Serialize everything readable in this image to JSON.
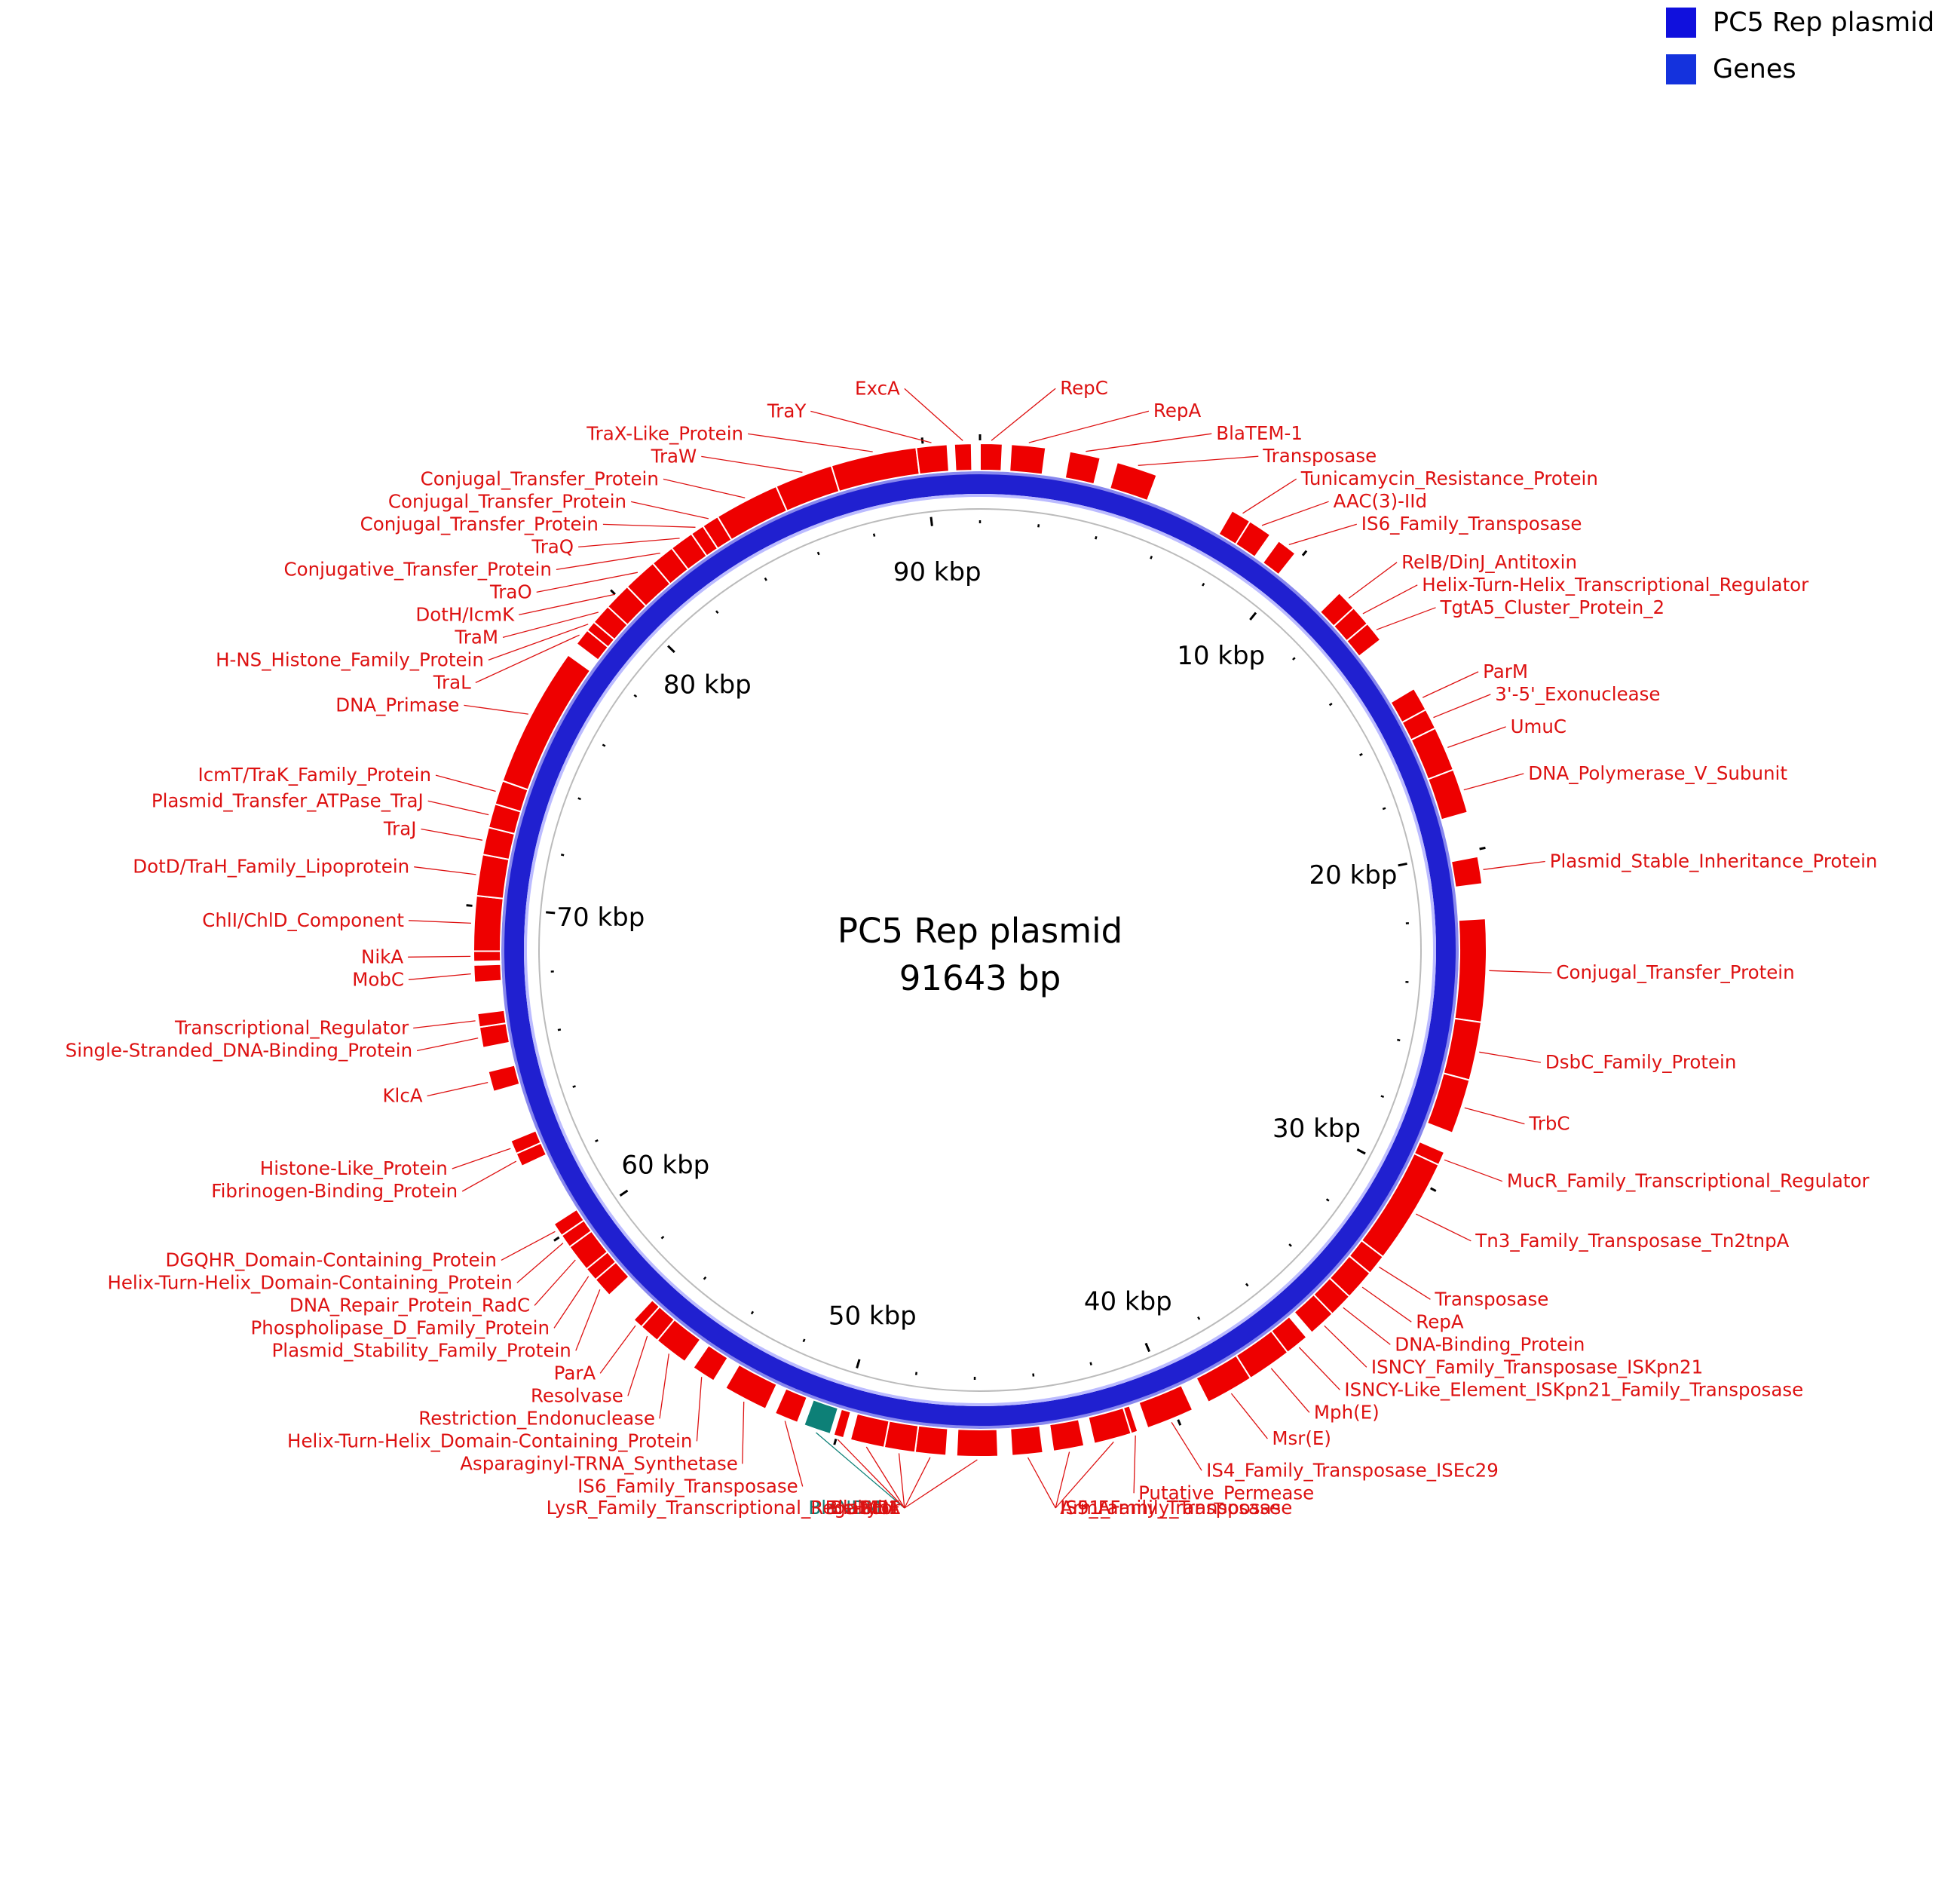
{
  "legend": [
    {
      "label": "PC5 Rep plasmid",
      "color": "#1010dd"
    },
    {
      "label": "Genes",
      "color": "#1432dd"
    }
  ],
  "plasmid": {
    "name": "PC5 Rep plasmid",
    "length_label": "91643 bp",
    "length_bp": 91643
  },
  "colors": {
    "backbone": "#2020d0",
    "gene": "#ee0000",
    "gene_text": "#dd1111",
    "highlight": "#0d8077",
    "highlight_text": "#0d8077"
  },
  "ticks": [
    {
      "bp": 10000,
      "label": "10 kbp"
    },
    {
      "bp": 20000,
      "label": "20 kbp"
    },
    {
      "bp": 30000,
      "label": "30 kbp"
    },
    {
      "bp": 40000,
      "label": "40 kbp"
    },
    {
      "bp": 50000,
      "label": "50 kbp"
    },
    {
      "bp": 60000,
      "label": "60 kbp"
    },
    {
      "bp": 70000,
      "label": "70 kbp"
    },
    {
      "bp": 80000,
      "label": "80 kbp"
    },
    {
      "bp": 90000,
      "label": "90 kbp"
    }
  ],
  "features": [
    {
      "name": "RepC",
      "start": 0,
      "end": 650
    },
    {
      "name": "RepA",
      "start": 900,
      "end": 1900
    },
    {
      "name": "BlaTEM-1",
      "start": 2600,
      "end": 3500
    },
    {
      "name": "Transposase",
      "start": 4000,
      "end": 5200
    },
    {
      "name": "Tunicamycin_Resistance_Protein",
      "start": 7600,
      "end": 8200
    },
    {
      "name": "AAC(3)-IId",
      "start": 8200,
      "end": 8900
    },
    {
      "name": "IS6_Family_Transposase",
      "start": 9200,
      "end": 9800
    },
    {
      "name": "RelB/DinJ_Antitoxin",
      "start": 11500,
      "end": 12100
    },
    {
      "name": "Helix-Turn-Helix_Transcriptional_Regulator",
      "start": 12100,
      "end": 12700
    },
    {
      "name": "TgtA5_Cluster_Protein_2",
      "start": 12700,
      "end": 13300
    },
    {
      "name": "ParM",
      "start": 15000,
      "end": 15700
    },
    {
      "name": "3'-5'_Exonuclease",
      "start": 15700,
      "end": 16300
    },
    {
      "name": "UmuC",
      "start": 16300,
      "end": 17600
    },
    {
      "name": "DNA_Polymerase_V_Subunit",
      "start": 17600,
      "end": 18900
    },
    {
      "name": "Plasmid_Stable_Inheritance_Protein",
      "start": 20200,
      "end": 21000
    },
    {
      "name": "Conjugal_Transfer_Protein",
      "start": 22000,
      "end": 25000
    },
    {
      "name": "DsbC_Family_Protein",
      "start": 25000,
      "end": 26700
    },
    {
      "name": "TrbC",
      "start": 26700,
      "end": 28300
    },
    {
      "name": "MucR_Family_Transcriptional_Regulator",
      "start": 28900,
      "end": 29300
    },
    {
      "name": "Tn3_Family_Transposase_Tn2tnpA",
      "start": 29300,
      "end": 32400
    },
    {
      "name": "Transposase",
      "start": 32400,
      "end": 33000
    },
    {
      "name": "RepA",
      "start": 33000,
      "end": 33900
    },
    {
      "name": "DNA-Binding_Protein",
      "start": 33900,
      "end": 34600
    },
    {
      "name": "ISNCY_Family_Transposase_ISKpn21",
      "start": 34600,
      "end": 35400
    },
    {
      "name": "ISNCY-Like_Element_ISKpn21_Family_Transposase",
      "start": 35600,
      "end": 36300
    },
    {
      "name": "Mph(E)",
      "start": 36300,
      "end": 37600
    },
    {
      "name": "Msr(E)",
      "start": 37600,
      "end": 39000
    },
    {
      "name": "IS4_Family_Transposase_ISEc29",
      "start": 39500,
      "end": 40900
    },
    {
      "name": "Putative_Permease",
      "start": 41200,
      "end": 41400
    },
    {
      "name": "ArmA",
      "start": 41400,
      "end": 42500
    },
    {
      "name": "IS5_Family_Transposase",
      "start": 42800,
      "end": 43700
    },
    {
      "name": "IS91_Family_Transposase",
      "start": 44000,
      "end": 44900
    },
    {
      "name": "Sul1",
      "start": 45300,
      "end": 46500
    },
    {
      "name": "HybF",
      "start": 46800,
      "end": 47700
    },
    {
      "name": "LysR_Family_Transcriptional_Regulator",
      "start": 47700,
      "end": 48600
    },
    {
      "name": "BlaDHA",
      "start": 48600,
      "end": 49600
    },
    {
      "name": "Ble-MBL",
      "start": 49800,
      "end": 50100
    },
    {
      "name": "BlaNDM-1",
      "start": 50200,
      "end": 51000,
      "highlight": true
    },
    {
      "name": "IS6_Family_Transposase",
      "start": 51200,
      "end": 51900
    },
    {
      "name": "Asparaginyl-TRNA_Synthetase",
      "start": 52200,
      "end": 53500
    },
    {
      "name": "Helix-Turn-Helix_Domain-Containing_Protein",
      "start": 53900,
      "end": 54600
    },
    {
      "name": "Restriction_Endonuclease",
      "start": 54900,
      "end": 55900
    },
    {
      "name": "Resolvase",
      "start": 55900,
      "end": 56500
    },
    {
      "name": "ParA",
      "start": 56500,
      "end": 56800
    },
    {
      "name": "Plasmid_Stability_Family_Protein",
      "start": 57800,
      "end": 58400
    },
    {
      "name": "Phospholipase_D_Family_Protein",
      "start": 58400,
      "end": 58800
    },
    {
      "name": "DNA_Repair_Protein_RadC",
      "start": 58800,
      "end": 59600
    },
    {
      "name": "Helix-Turn-Helix_Domain-Containing_Protein",
      "start": 59600,
      "end": 60000
    },
    {
      "name": "DGQHR_Domain-Containing_Protein",
      "start": 60000,
      "end": 60400
    },
    {
      "name": "Fibrinogen-Binding_Protein",
      "start": 62300,
      "end": 62700
    },
    {
      "name": "Histone-Like_Protein",
      "start": 62700,
      "end": 63100
    },
    {
      "name": "KlcA",
      "start": 64600,
      "end": 65200
    },
    {
      "name": "Single-Stranded_DNA-Binding_Protein",
      "start": 65900,
      "end": 66500
    },
    {
      "name": "Transcriptional_Regulator",
      "start": 66500,
      "end": 66900
    },
    {
      "name": "MobC",
      "start": 67800,
      "end": 68300
    },
    {
      "name": "NikA",
      "start": 68400,
      "end": 68700
    },
    {
      "name": "ChlI/ChlD_Component",
      "start": 68700,
      "end": 70300
    },
    {
      "name": "DotD/TraH_Family_Lipoprotein",
      "start": 70300,
      "end": 71500
    },
    {
      "name": "TraJ",
      "start": 71500,
      "end": 72300
    },
    {
      "name": "Plasmid_Transfer_ATPase_TraJ",
      "start": 72300,
      "end": 73000
    },
    {
      "name": "IcmT/TraK_Family_Protein",
      "start": 73000,
      "end": 73700
    },
    {
      "name": "DNA_Primase",
      "start": 73700,
      "end": 77800
    },
    {
      "name": "TraL",
      "start": 78200,
      "end": 78700
    },
    {
      "name": "H-NS_Histone_Family_Protein",
      "start": 78700,
      "end": 79000
    },
    {
      "name": "TraM",
      "start": 79000,
      "end": 79600
    },
    {
      "name": "DotH/IcmK",
      "start": 79600,
      "end": 80400
    },
    {
      "name": "TraO",
      "start": 80400,
      "end": 81400
    },
    {
      "name": "Conjugative_Transfer_Protein",
      "start": 81400,
      "end": 82100
    },
    {
      "name": "TraQ",
      "start": 82100,
      "end": 82800
    },
    {
      "name": "Conjugal_Transfer_Protein",
      "start": 82800,
      "end": 83200
    },
    {
      "name": "Conjugal_Transfer_Protein",
      "start": 83200,
      "end": 83700
    },
    {
      "name": "Conjugal_Transfer_Protein",
      "start": 83700,
      "end": 85600
    },
    {
      "name": "TraW",
      "start": 85600,
      "end": 87300
    },
    {
      "name": "TraX-Like_Protein",
      "start": 87300,
      "end": 89800
    },
    {
      "name": "TraY",
      "start": 89800,
      "end": 90700
    },
    {
      "name": "ExcA",
      "start": 90900,
      "end": 91400
    }
  ]
}
